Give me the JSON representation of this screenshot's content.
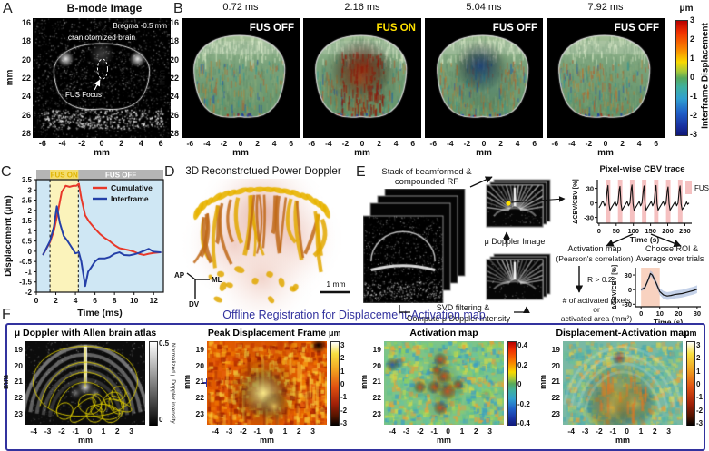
{
  "colors": {
    "accent_navy": "#32329e",
    "cumulative_red": "#e8392a",
    "interframe_blue": "#2540a8",
    "fus_on_text": "#e0b400",
    "fus_band_pink": "#f5c0c0",
    "plot_bg_blue": "#cfe7f4",
    "plot_bg_yellow": "#fbf3bb",
    "band_gray": "#b5b5b5"
  },
  "panels": {
    "A": {
      "label": "A",
      "title": "B-mode Image",
      "bregma": "Bregma -0.5 mm",
      "brain_label": "craniotomized brain",
      "focus_label": "FUS Focus",
      "y_label": "mm",
      "x_label": "mm",
      "y_ticks": [
        16,
        18,
        20,
        22,
        24,
        26,
        28
      ],
      "x_ticks": [
        -6,
        -4,
        -2,
        0,
        2,
        4,
        6
      ]
    },
    "B": {
      "label": "B",
      "frames": [
        {
          "time": "0.72 ms",
          "status": "FUS OFF",
          "status_color": "#ffffff",
          "mode": "off"
        },
        {
          "time": "2.16 ms",
          "status": "FUS ON",
          "status_color": "#ffe100",
          "mode": "on"
        },
        {
          "time": "5.04 ms",
          "status": "FUS OFF",
          "status_color": "#ffffff",
          "mode": "rebound"
        },
        {
          "time": "7.92 ms",
          "status": "FUS OFF",
          "status_color": "#ffffff",
          "mode": "calm"
        }
      ],
      "y_label": "mm",
      "x_label": "mm",
      "y_ticks": [
        16,
        18,
        20,
        22,
        24,
        26,
        28
      ],
      "x_ticks": [
        -6,
        -4,
        -2,
        0,
        2,
        4,
        6
      ],
      "colorbar": {
        "unit": "μm",
        "ticks": [
          3,
          2,
          1,
          0,
          -1,
          -2,
          -3
        ],
        "label": "Interframe Displacement"
      }
    },
    "C": {
      "label": "C",
      "fus_on": "FUS ON",
      "fus_off": "FUS OFF"
    },
    "D": {
      "label": "D",
      "title": "3D Reconstrctued Power Doppler",
      "axis_ap": "AP",
      "axis_ml": "ML",
      "axis_dv": "DV",
      "scalebar": "1 mm"
    },
    "E": {
      "label": "E",
      "stack_title_1": "Stack of beamformed &",
      "stack_title_2": "compounded RF",
      "udoppler_label": "μ Doppler Image",
      "svd_1": "SVD filtering &",
      "svd_2": "Compute μ Doppler Intensity",
      "cbv_title": "Pixel-wise CBV trace",
      "fus_legend": "FUS",
      "activation_1": "Activation map",
      "activation_2": "(Pearson's correlation)",
      "r_text": "R > 0.2",
      "pixels_1": "# of activated pixels",
      "pixels_2": "or",
      "pixels_3": "activated area (mm²)",
      "roi_1": "Choose ROI &",
      "roi_2": "Average over trials"
    },
    "F": {
      "label": "F",
      "title": "Offline Registration for Displacement-Activation map",
      "operators": [
        "+",
        "+",
        "="
      ],
      "y_label": "mm",
      "x_label": "mm",
      "y_ticks": [
        19,
        20,
        21,
        22,
        23
      ],
      "x_ticks": [
        -4,
        -3,
        -2,
        -1,
        0,
        1,
        2,
        3
      ],
      "subpanels": [
        {
          "title": "μ Doppler with Allen brain atlas",
          "unit": "",
          "cbar_ticks": [
            "0.5",
            "0"
          ],
          "cbar_label": "Normalized μ Doppler intensity",
          "cbar_type": "gray"
        },
        {
          "title": "Peak Displacement Frame",
          "unit": "μm",
          "cbar_ticks": [
            "3",
            "2",
            "1",
            "0",
            "-1",
            "-2",
            "-3"
          ],
          "cbar_type": "hot"
        },
        {
          "title": "Activation map",
          "unit": "",
          "cbar_ticks": [
            "0.4",
            "0.2",
            "0",
            "-0.2",
            "-0.4"
          ],
          "cbar_type": "jet"
        },
        {
          "title": "Displacement-Activation map",
          "unit": "μm",
          "cbar_ticks": [
            "3",
            "2",
            "1",
            "0",
            "-1",
            "-2",
            "-3"
          ],
          "cbar_type": "hot"
        }
      ]
    }
  },
  "chart_data": [
    {
      "type": "line",
      "name": "displacement_vs_time",
      "xlabel": "Time (ms)",
      "ylabel": "Displacement (μm)",
      "xlim": [
        0,
        13
      ],
      "ylim": [
        -2,
        3.5
      ],
      "x_ticks": [
        0,
        2,
        4,
        6,
        8,
        10,
        12
      ],
      "y_ticks": [
        "3.5",
        "3",
        "2.5",
        "2",
        "1.5",
        "1",
        "0.5",
        "0",
        "-0.5",
        "-1",
        "-1.5",
        "-2"
      ],
      "fus_on_window": [
        1.4,
        4.3
      ],
      "legend_position": "upper right",
      "series": [
        {
          "name": "Cumulative",
          "color": "#e8392a",
          "x": [
            0.7,
            1.0,
            1.4,
            1.8,
            2.2,
            2.6,
            3.0,
            3.4,
            3.8,
            4.1,
            4.35,
            4.6,
            5.0,
            5.4,
            6.0,
            6.5,
            7.0,
            7.5,
            8.0,
            8.5,
            9.0,
            9.5,
            10.0,
            10.5,
            11.0,
            11.5,
            12.0,
            12.7
          ],
          "y": [
            -0.15,
            0.1,
            0.45,
            1.0,
            1.9,
            2.9,
            3.2,
            3.15,
            3.2,
            3.2,
            3.3,
            2.6,
            1.75,
            1.45,
            1.1,
            0.85,
            0.65,
            0.5,
            0.3,
            0.15,
            0.1,
            0.05,
            -0.02,
            -0.12,
            -0.18,
            -0.12,
            -0.08,
            -0.05
          ]
        },
        {
          "name": "Interframe",
          "color": "#2540a8",
          "x": [
            0.7,
            1.0,
            1.4,
            1.8,
            2.1,
            2.4,
            2.8,
            3.2,
            3.6,
            4.0,
            4.35,
            4.6,
            5.0,
            5.3,
            5.6,
            6.0,
            6.4,
            7.0,
            7.5,
            8.0,
            8.5,
            9.0,
            9.5,
            10.0,
            10.5,
            11.0,
            11.5,
            12.0,
            12.7
          ],
          "y": [
            -0.15,
            0.12,
            0.5,
            1.2,
            2.2,
            1.4,
            0.75,
            0.5,
            0.2,
            -0.1,
            -0.05,
            -0.5,
            -1.7,
            -1.0,
            -0.8,
            -0.5,
            -0.35,
            -0.35,
            -0.28,
            -0.12,
            -0.05,
            -0.18,
            -0.2,
            -0.15,
            -0.08,
            0.02,
            0.12,
            -0.02,
            -0.05
          ]
        }
      ]
    },
    {
      "type": "line",
      "name": "pixelwise_cbv_trace",
      "title": "Pixel-wise CBV trace",
      "xlabel": "Time (s)",
      "ylabel": "ΔCBV/CBV [%]",
      "xlim": [
        -5,
        270
      ],
      "ylim": [
        -42,
        48
      ],
      "x_ticks": [
        0,
        50,
        100,
        150,
        200,
        250
      ],
      "y_ticks": [
        30,
        0,
        -30
      ],
      "fus_bands": [
        [
          20,
          13
        ],
        [
          55,
          13
        ],
        [
          90,
          13
        ],
        [
          125,
          13
        ],
        [
          160,
          13
        ],
        [
          195,
          13
        ],
        [
          230,
          13
        ]
      ],
      "x": [
        0,
        5,
        9,
        12,
        16,
        20,
        24,
        26,
        29,
        32,
        36,
        47,
        51,
        55,
        59,
        61,
        64,
        67,
        71,
        82,
        86,
        90,
        94,
        96,
        99,
        102,
        106,
        117,
        121,
        125,
        129,
        131,
        134,
        137,
        141,
        152,
        156,
        160,
        164,
        166,
        169,
        172,
        176,
        187,
        191,
        195,
        199,
        201,
        204,
        207,
        211,
        222,
        226,
        230,
        234,
        236,
        239,
        242,
        246,
        250,
        255,
        258,
        262
      ],
      "y": [
        -10,
        -4,
        2,
        3,
        -6,
        0,
        28,
        36,
        -2,
        -15,
        -10,
        3,
        -6,
        0,
        28,
        34,
        -2,
        -15,
        -10,
        3,
        -6,
        0,
        30,
        37,
        -2,
        -15,
        -10,
        3,
        -6,
        0,
        27,
        35,
        -2,
        -15,
        -10,
        3,
        -6,
        0,
        29,
        36,
        -2,
        -15,
        -10,
        3,
        -6,
        0,
        26,
        33,
        -2,
        -15,
        -10,
        3,
        -6,
        0,
        28,
        35,
        -2,
        -14,
        -10,
        -6,
        2,
        -3,
        0
      ]
    },
    {
      "type": "line",
      "name": "roi_average_trace",
      "xlabel": "Time (s)",
      "ylabel": "ΔCBV/CBV [%]",
      "xlim": [
        -3,
        32
      ],
      "ylim": [
        -35,
        45
      ],
      "x_ticks": [
        0,
        10,
        20,
        30
      ],
      "y_ticks": [
        30,
        0,
        -30
      ],
      "fus_band": [
        0,
        10
      ],
      "x": [
        0,
        2,
        4,
        5,
        6,
        8,
        10,
        12,
        14,
        16,
        18,
        20,
        22,
        24,
        26,
        28,
        30
      ],
      "y": [
        0,
        4,
        22,
        33,
        30,
        14,
        -4,
        -11,
        -13,
        -12,
        -10,
        -9,
        -8,
        -6,
        -4,
        -2,
        1
      ],
      "sd": [
        3,
        4,
        5,
        6,
        6,
        6,
        7,
        8,
        8,
        8,
        8,
        8,
        8,
        8,
        8,
        8,
        8
      ]
    }
  ]
}
